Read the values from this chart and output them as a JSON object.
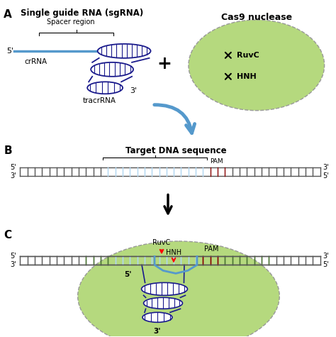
{
  "title_a": "Single guide RNA (sgRNA)",
  "title_b_label": "Target DNA sequence",
  "cas9_label": "Cas9 nuclease",
  "ruvc_label": "RuvC",
  "hnh_label": "HNH",
  "crRNA_label": "crRNA",
  "tracrRNA_label": "tracrRNA",
  "spacer_label": "Spacer region",
  "pam_label": "PAM",
  "green_fill": "#b5d97e",
  "blue_line": "#5599cc",
  "navy_blue": "#1a1a8c",
  "light_blue_fill": "#aed6f1",
  "dark_red": "#880000",
  "black": "#000000",
  "white": "#ffffff",
  "gray": "#555555",
  "bg_color": "#ffffff",
  "fig_w": 4.74,
  "fig_h": 4.75,
  "dpi": 100
}
